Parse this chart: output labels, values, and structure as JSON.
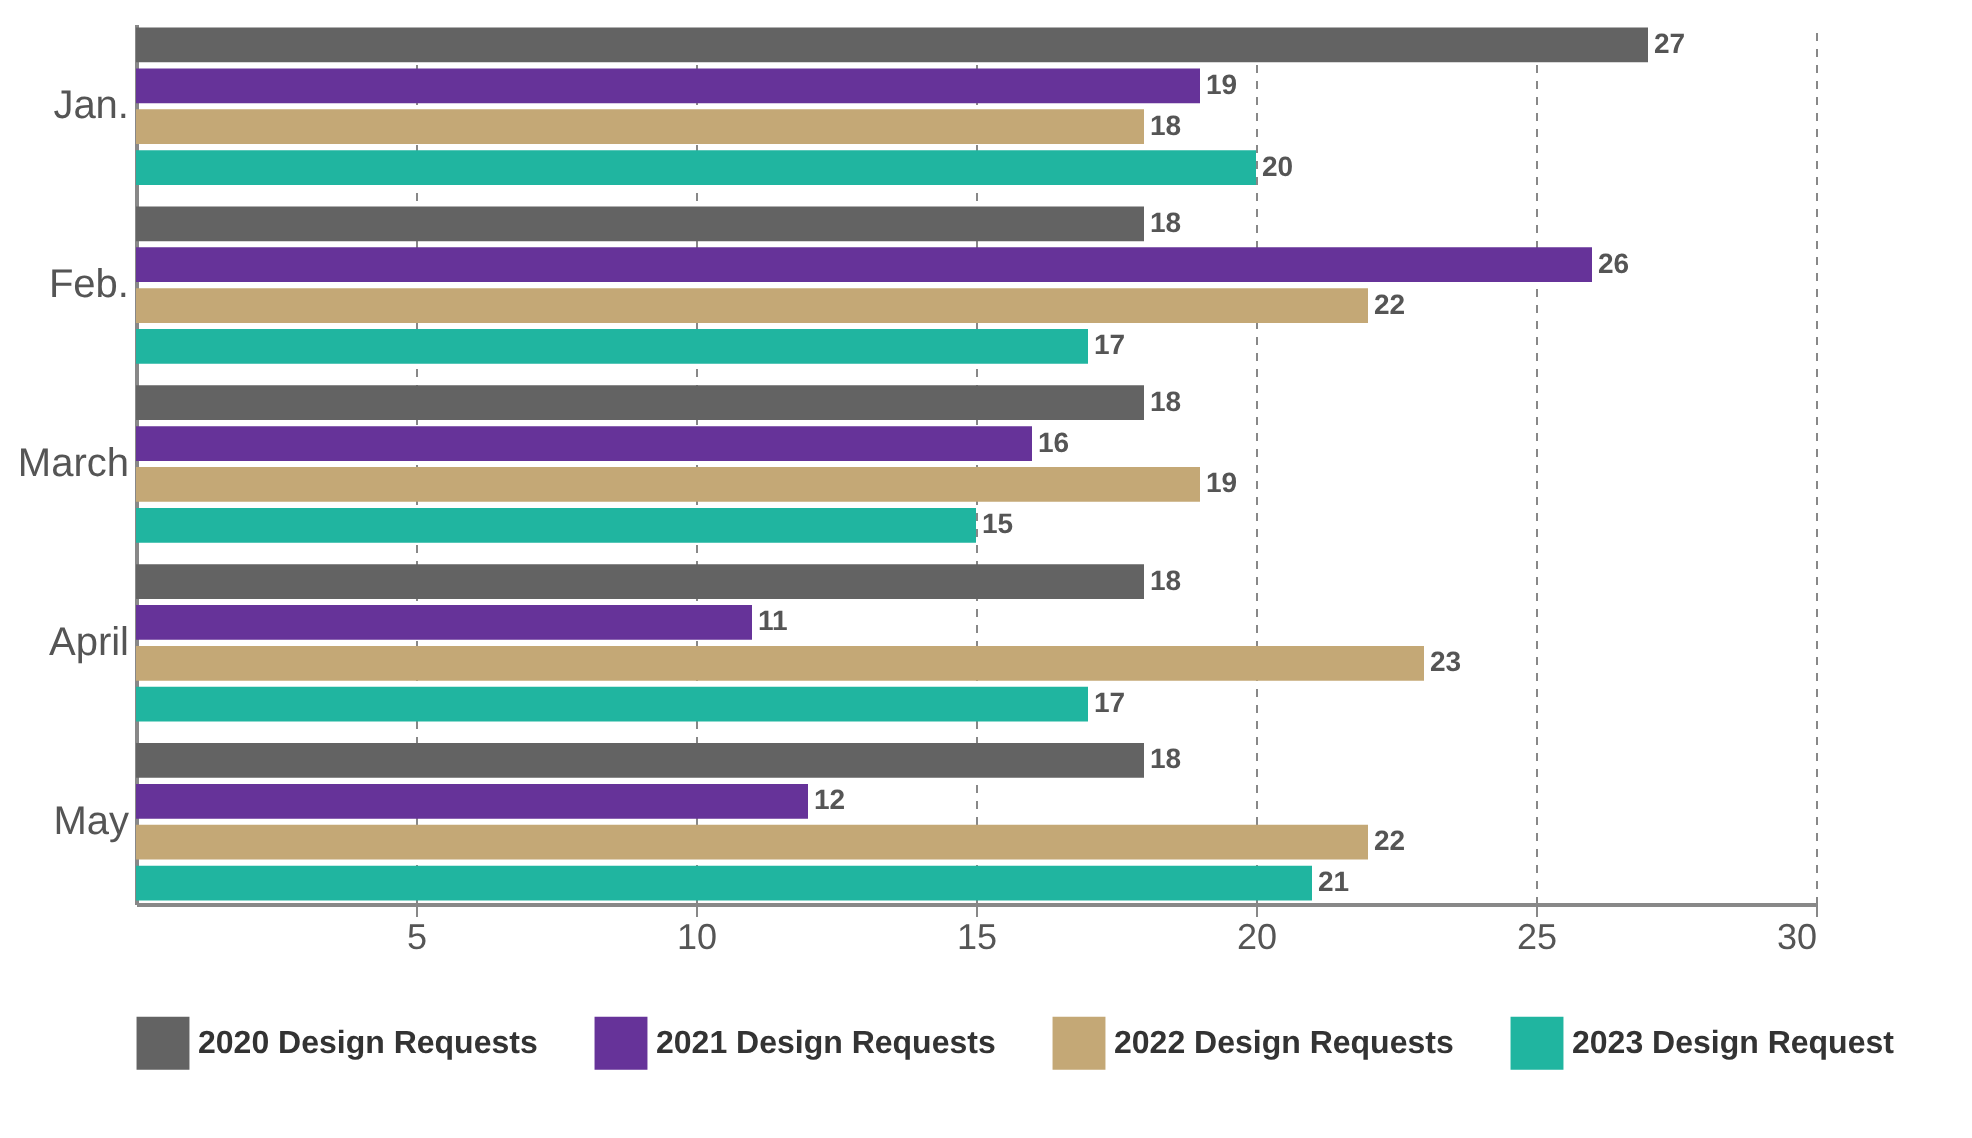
{
  "chart_data": {
    "type": "bar",
    "orientation": "horizontal",
    "categories": [
      "Jan.",
      "Feb.",
      "March",
      "April",
      "May"
    ],
    "series": [
      {
        "name": "2020 Design Requests",
        "color": "#636363",
        "values": [
          27,
          18,
          18,
          18,
          18
        ]
      },
      {
        "name": "2021 Design Requests",
        "color": "#663399",
        "values": [
          19,
          26,
          16,
          11,
          12
        ]
      },
      {
        "name": "2022 Design Requests",
        "color": "#c4a876",
        "values": [
          18,
          22,
          19,
          23,
          22
        ]
      },
      {
        "name": "2023 Design Request",
        "color": "#20b5a0",
        "values": [
          20,
          17,
          15,
          17,
          21
        ]
      }
    ],
    "xlim": [
      0,
      30
    ],
    "xticks": [
      5,
      10,
      15,
      20,
      25,
      30
    ],
    "grid": "x",
    "legend": "bottom",
    "data_labels": true
  }
}
